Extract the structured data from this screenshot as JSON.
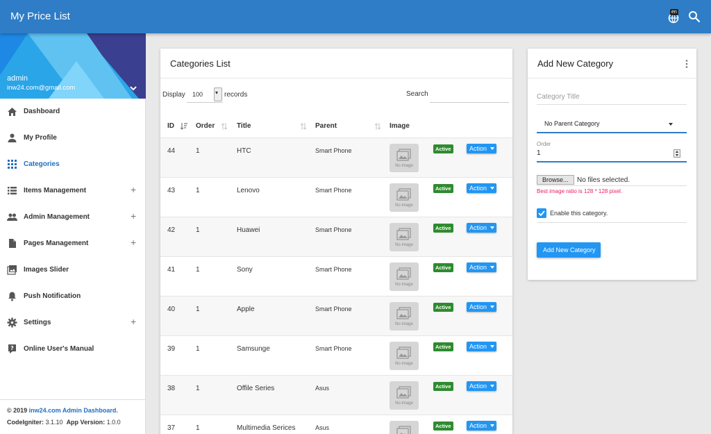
{
  "app": {
    "title": "My Price List",
    "lang_badge": "en"
  },
  "profile": {
    "name": "admin",
    "email": "inw24.com@gmail.com"
  },
  "sidebar": {
    "items": [
      {
        "label": "Dashboard",
        "icon": "home-icon"
      },
      {
        "label": "My Profile",
        "icon": "person-icon"
      },
      {
        "label": "Categories",
        "icon": "grid-icon",
        "active": true
      },
      {
        "label": "Items Management",
        "icon": "list-icon",
        "expand": "+"
      },
      {
        "label": "Admin Management",
        "icon": "people-icon",
        "expand": "+"
      },
      {
        "label": "Pages Management",
        "icon": "page-icon",
        "expand": "+"
      },
      {
        "label": "Images Slider",
        "icon": "image-icon"
      },
      {
        "label": "Push Notification",
        "icon": "bell-icon"
      },
      {
        "label": "Settings",
        "icon": "gear-icon",
        "expand": "+"
      },
      {
        "label": "Online User's Manual",
        "icon": "help-icon"
      }
    ]
  },
  "footer": {
    "copyright_prefix": "© 2019 ",
    "copyright_link": "inw24.com Admin Dashboard.",
    "codeigniter_label": "CodeIgniter:",
    "codeigniter_version": "3.1.10",
    "app_version_label": "App Version:",
    "app_version": "1.0.0"
  },
  "categories_list": {
    "title": "Categories List",
    "display_label": "Display",
    "display_value": "100",
    "records_label": "records",
    "search_label": "Search",
    "columns": [
      "ID",
      "Order",
      "Title",
      "Parent",
      "Image"
    ],
    "no_image_text": "No image",
    "rows": [
      {
        "id": "44",
        "order": "1",
        "title": "HTC",
        "parent": "Smart Phone",
        "status": "Active",
        "action": "Action"
      },
      {
        "id": "43",
        "order": "1",
        "title": "Lenovo",
        "parent": "Smart Phone",
        "status": "Active",
        "action": "Action"
      },
      {
        "id": "42",
        "order": "1",
        "title": "Huawei",
        "parent": "Smart Phone",
        "status": "Active",
        "action": "Action"
      },
      {
        "id": "41",
        "order": "1",
        "title": "Sony",
        "parent": "Smart Phone",
        "status": "Active",
        "action": "Action"
      },
      {
        "id": "40",
        "order": "1",
        "title": "Apple",
        "parent": "Smart Phone",
        "status": "Active",
        "action": "Action"
      },
      {
        "id": "39",
        "order": "1",
        "title": "Samsunge",
        "parent": "Smart Phone",
        "status": "Active",
        "action": "Action"
      },
      {
        "id": "38",
        "order": "1",
        "title": "Offile Series",
        "parent": "Asus",
        "status": "Active",
        "action": "Action"
      },
      {
        "id": "37",
        "order": "1",
        "title": "Multimedia Serices",
        "parent": "Asus",
        "status": "Active",
        "action": "Action"
      }
    ]
  },
  "add_category": {
    "title": "Add New Category",
    "title_placeholder": "Category Title",
    "parent_value": "No Parent Category",
    "order_label": "Order",
    "order_value": "1",
    "browse_label": "Browse...",
    "file_status": "No files selected.",
    "image_hint": "Best image ratio is 128 * 128 pixel.",
    "enable_label": "Enable this category.",
    "enable_checked": true,
    "submit_label": "Add New Category"
  },
  "colors": {
    "primary": "#2e7dc6",
    "accent": "#2196f3",
    "active_badge": "#2e8b2e",
    "hint": "#e91e63"
  }
}
